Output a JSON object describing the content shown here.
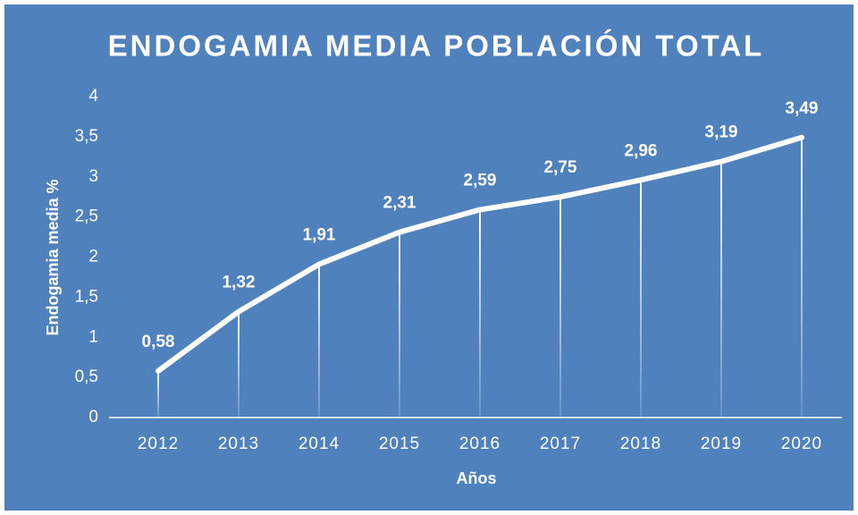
{
  "chart_data": {
    "type": "line",
    "title": "ENDOGAMIA MEDIA POBLACIÓN TOTAL",
    "x_label": "Años",
    "y_label": "Endogamia media %",
    "categories": [
      "2012",
      "2013",
      "2014",
      "2015",
      "2016",
      "2017",
      "2018",
      "2019",
      "2020"
    ],
    "series": [
      {
        "name": "Endogamia media",
        "color": "#ffffff",
        "values": [
          0.58,
          1.32,
          1.91,
          2.31,
          2.59,
          2.75,
          2.96,
          3.19,
          3.49
        ],
        "value_labels": [
          "0,58",
          "1,32",
          "1,91",
          "2,31",
          "2,59",
          "2,75",
          "2,96",
          "3,19",
          "3,49"
        ]
      }
    ],
    "ylim": [
      0,
      4
    ],
    "yticks": [
      0,
      {
        "value": 0.5,
        "label": "0,5"
      },
      1,
      {
        "value": 1.5,
        "label": "1,5"
      },
      2,
      {
        "value": 2.5,
        "label": "2,5"
      },
      3,
      {
        "value": 3.5,
        "label": "3,5"
      },
      4
    ],
    "drop_lines": true
  }
}
